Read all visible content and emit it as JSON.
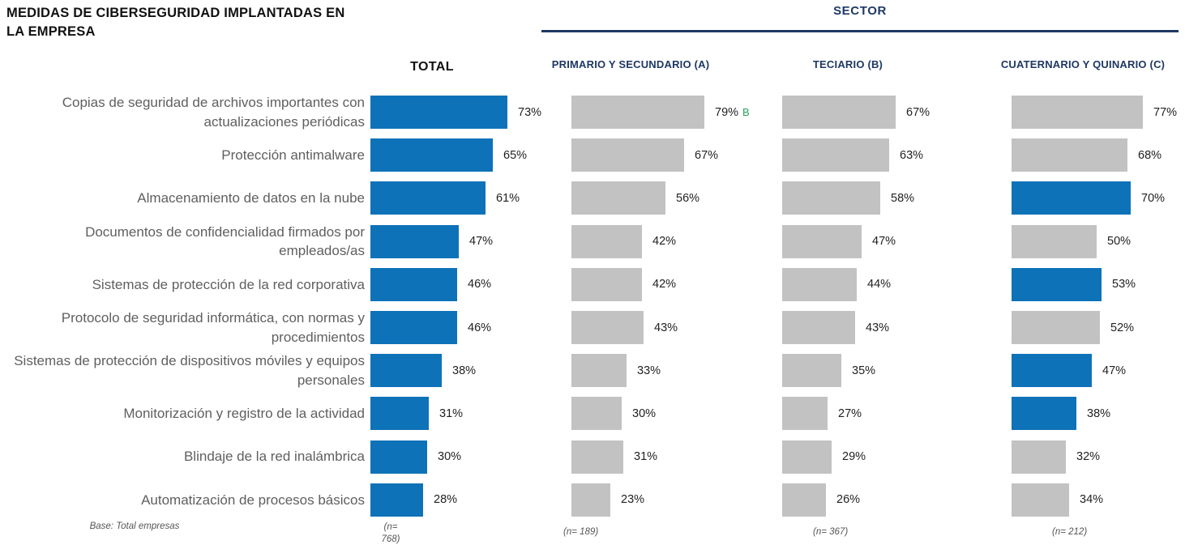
{
  "title": "MEDIDAS DE CIBERSEGURIDAD IMPLANTADAS EN LA EMPRESA",
  "sector": {
    "label": "SECTOR"
  },
  "columns": [
    {
      "id": "total",
      "header": "TOTAL",
      "n": "(n= 768)"
    },
    {
      "id": "primario",
      "header": "PRIMARIO Y SECUNDARIO (A)",
      "n": "(n= 189)"
    },
    {
      "id": "teciario",
      "header": "TECIARIO (B)",
      "n": "(n= 367)"
    },
    {
      "id": "cuaternario",
      "header": "CUATERNARIO Y QUINARIO (C)",
      "n": "(n= 212)"
    }
  ],
  "footer": {
    "base": "Base: Total empresas"
  },
  "colors": {
    "bar_blue": "#0e72b8",
    "bar_gray": "#c2c2c2",
    "navy": "#1f3864",
    "green": "#2aa45e",
    "label_gray": "#5f5f5f",
    "value_text": "#222222"
  },
  "chart_data": {
    "type": "bar",
    "orientation": "horizontal",
    "value_suffix": "%",
    "xlim": [
      0,
      100
    ],
    "grid": false,
    "legend": "none",
    "categories": [
      "Copias de seguridad de archivos importantes con actualizaciones periódicas",
      "Protección antimalware",
      "Almacenamiento de datos en la nube",
      "Documentos de confidencialidad firmados por empleados/as",
      "Sistemas de protección de la red corporativa",
      "Protocolo de seguridad informática, con normas y procedimientos",
      "Sistemas de protección de dispositivos móviles y equipos personales",
      "Monitorización y registro de la actividad",
      "Blindaje de la red inalámbrica",
      "Automatización de procesos básicos"
    ],
    "series": [
      {
        "name": "TOTAL",
        "color_role": "blue",
        "values": [
          73,
          65,
          61,
          47,
          46,
          46,
          38,
          31,
          30,
          28
        ]
      },
      {
        "name": "PRIMARIO Y SECUNDARIO (A)",
        "color_role": "gray",
        "values": [
          79,
          67,
          56,
          42,
          42,
          43,
          33,
          30,
          31,
          23
        ],
        "value_annotations": [
          {
            "index": 0,
            "text": "B",
            "color": "green"
          }
        ]
      },
      {
        "name": "TECIARIO (B)",
        "color_role": "gray",
        "values": [
          67,
          63,
          58,
          47,
          44,
          43,
          35,
          27,
          29,
          26
        ]
      },
      {
        "name": "CUATERNARIO Y QUINARIO (C)",
        "color_role": "gray",
        "values": [
          77,
          68,
          70,
          50,
          53,
          52,
          47,
          38,
          32,
          34
        ],
        "highlighted_indices": [
          2,
          4,
          6,
          7
        ]
      }
    ]
  }
}
